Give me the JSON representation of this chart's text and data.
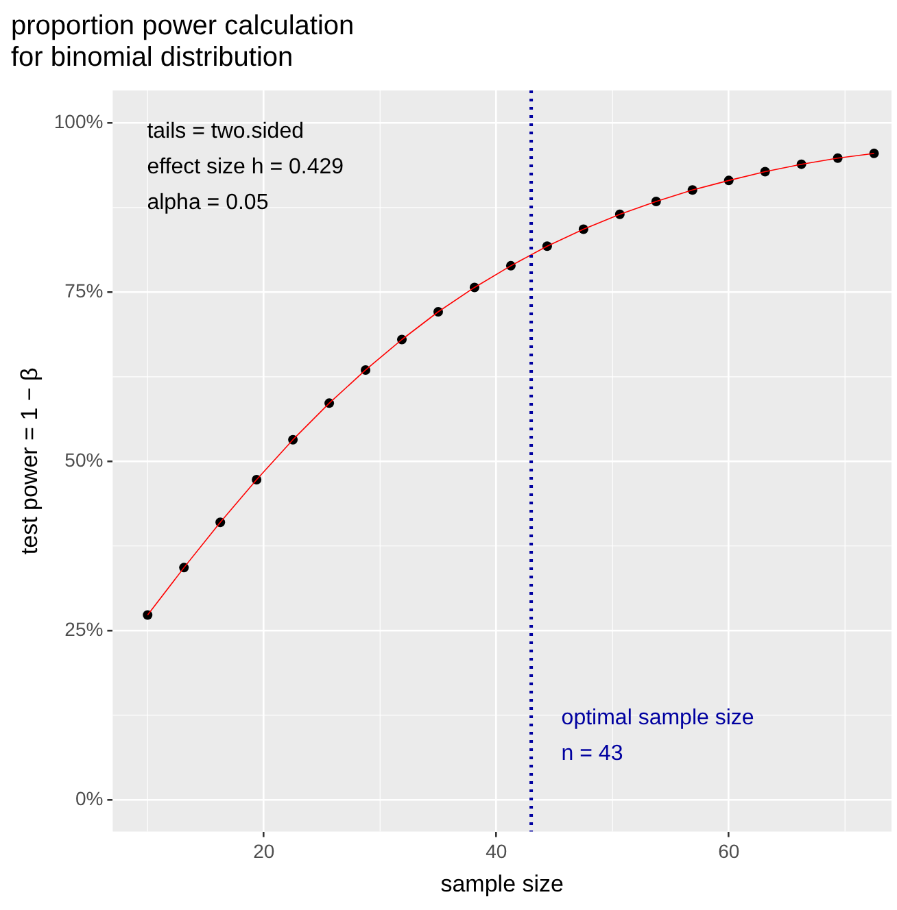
{
  "chart_data": {
    "type": "line",
    "title": "proportion power calculation\nfor binomial distribution",
    "xlabel": "sample size",
    "ylabel": "test power = 1 − β",
    "x": [
      10,
      13.125,
      16.25,
      19.375,
      22.5,
      25.625,
      28.75,
      31.875,
      35,
      38.125,
      41.25,
      44.375,
      47.5,
      50.625,
      53.75,
      56.875,
      60,
      63.125,
      66.25,
      69.375,
      72.5
    ],
    "series": [
      {
        "type": "line",
        "color": "#ff0000",
        "marker": "none",
        "values": [
          0.273,
          0.343,
          0.41,
          0.473,
          0.532,
          0.586,
          0.635,
          0.68,
          0.721,
          0.757,
          0.789,
          0.818,
          0.843,
          0.865,
          0.884,
          0.901,
          0.915,
          0.928,
          0.939,
          0.948,
          0.955
        ]
      },
      {
        "type": "scatter",
        "color": "#000000",
        "marker": "circle",
        "values": [
          0.273,
          0.343,
          0.41,
          0.473,
          0.532,
          0.586,
          0.635,
          0.68,
          0.721,
          0.757,
          0.789,
          0.818,
          0.843,
          0.865,
          0.884,
          0.901,
          0.915,
          0.928,
          0.939,
          0.948,
          0.955
        ]
      }
    ],
    "xlim": [
      7,
      74
    ],
    "xticks": [
      20,
      40,
      60
    ],
    "ylim": [
      -0.047,
      1.048
    ],
    "yticks": [
      {
        "value": 0,
        "label": "0%"
      },
      {
        "value": 0.25,
        "label": "25%"
      },
      {
        "value": 0.5,
        "label": "50%"
      },
      {
        "value": 0.75,
        "label": "75%"
      },
      {
        "value": 1,
        "label": "100%"
      }
    ],
    "grid": true,
    "ref_lines": [
      {
        "axis": "x",
        "value": 43,
        "label": "optimal sample size\nn = 43",
        "color": "#0000a0",
        "line_style": "dotted"
      }
    ],
    "annotations": [
      "tails = two.sided",
      "effect size h = 0.429",
      "alpha = 0.05"
    ]
  }
}
